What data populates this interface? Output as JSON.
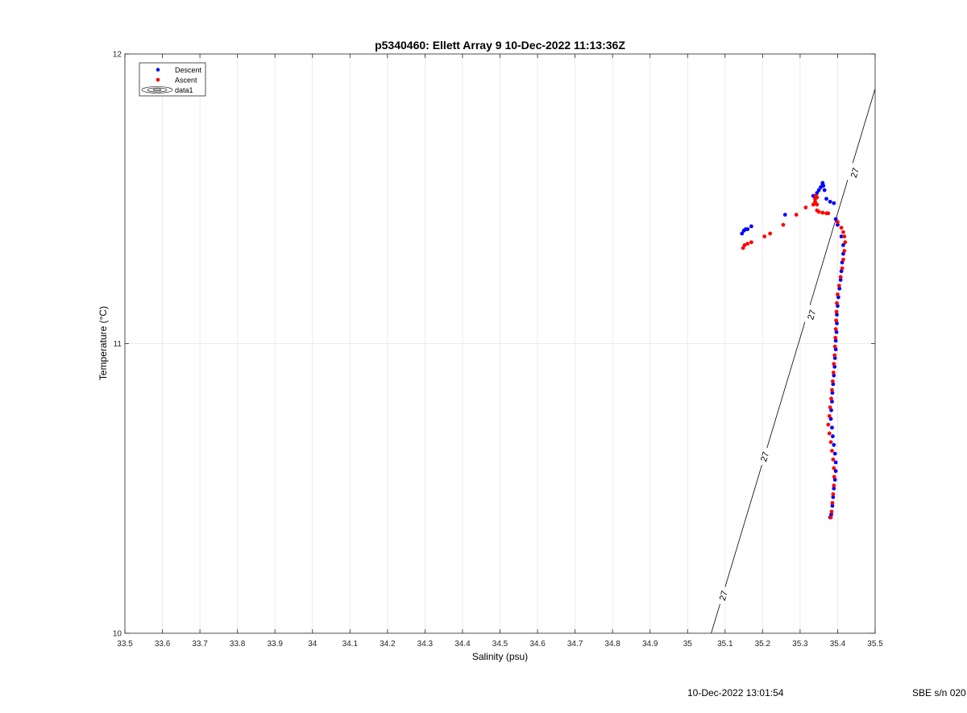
{
  "chart_data": {
    "type": "scatter",
    "title": "p5340460: Ellett Array 9 10-Dec-2022 11:13:36Z",
    "xlabel": "Salinity (psu)",
    "ylabel": "Temperature (°C)",
    "xlim": [
      33.5,
      35.5
    ],
    "ylim": [
      10,
      12
    ],
    "x_ticks": [
      "33.5",
      "33.6",
      "33.7",
      "33.8",
      "33.9",
      "34",
      "34.1",
      "34.2",
      "34.3",
      "34.4",
      "34.5",
      "34.6",
      "34.7",
      "34.8",
      "34.9",
      "35",
      "35.1",
      "35.2",
      "35.3",
      "35.4",
      "35.5"
    ],
    "y_ticks": [
      "10",
      "11",
      "12"
    ],
    "grid": true,
    "legend_position": "top-left",
    "series": [
      {
        "name": "Descent",
        "color": "#0000ff",
        "marker": "dot",
        "points": [
          [
            35.145,
            11.38
          ],
          [
            35.15,
            11.39
          ],
          [
            35.155,
            11.395
          ],
          [
            35.16,
            11.395
          ],
          [
            35.17,
            11.405
          ],
          [
            35.26,
            11.445
          ],
          [
            35.335,
            11.51
          ],
          [
            35.345,
            11.52
          ],
          [
            35.35,
            11.53
          ],
          [
            35.355,
            11.54
          ],
          [
            35.36,
            11.55
          ],
          [
            35.36,
            11.555
          ],
          [
            35.362,
            11.545
          ],
          [
            35.365,
            11.53
          ],
          [
            35.37,
            11.5
          ],
          [
            35.38,
            11.49
          ],
          [
            35.39,
            11.485
          ],
          [
            35.395,
            11.43
          ],
          [
            35.4,
            11.41
          ],
          [
            35.41,
            11.37
          ],
          [
            35.415,
            11.34
          ],
          [
            35.415,
            11.31
          ],
          [
            35.412,
            11.28
          ],
          [
            35.41,
            11.25
          ],
          [
            35.408,
            11.22
          ],
          [
            35.405,
            11.19
          ],
          [
            35.402,
            11.16
          ],
          [
            35.4,
            11.13
          ],
          [
            35.398,
            11.1
          ],
          [
            35.398,
            11.07
          ],
          [
            35.397,
            11.04
          ],
          [
            35.395,
            11.01
          ],
          [
            35.395,
            10.98
          ],
          [
            35.393,
            10.95
          ],
          [
            35.392,
            10.92
          ],
          [
            35.39,
            10.89
          ],
          [
            35.388,
            10.86
          ],
          [
            35.386,
            10.83
          ],
          [
            35.385,
            10.8
          ],
          [
            35.383,
            10.77
          ],
          [
            35.382,
            10.74
          ],
          [
            35.385,
            10.71
          ],
          [
            35.387,
            10.68
          ],
          [
            35.39,
            10.65
          ],
          [
            35.393,
            10.62
          ],
          [
            35.395,
            10.59
          ],
          [
            35.395,
            10.56
          ],
          [
            35.393,
            10.53
          ],
          [
            35.39,
            10.5
          ],
          [
            35.388,
            10.47
          ],
          [
            35.386,
            10.44
          ],
          [
            35.383,
            10.41
          ],
          [
            35.38,
            10.4
          ]
        ]
      },
      {
        "name": "Ascent",
        "color": "#ff0000",
        "marker": "dot",
        "points": [
          [
            35.148,
            11.33
          ],
          [
            35.152,
            11.34
          ],
          [
            35.16,
            11.345
          ],
          [
            35.17,
            11.35
          ],
          [
            35.205,
            11.37
          ],
          [
            35.22,
            11.38
          ],
          [
            35.255,
            11.41
          ],
          [
            35.29,
            11.445
          ],
          [
            35.315,
            11.47
          ],
          [
            35.335,
            11.48
          ],
          [
            35.34,
            11.49
          ],
          [
            35.34,
            11.5
          ],
          [
            35.342,
            11.51
          ],
          [
            35.345,
            11.505
          ],
          [
            35.345,
            11.48
          ],
          [
            35.345,
            11.46
          ],
          [
            35.35,
            11.455
          ],
          [
            35.36,
            11.452
          ],
          [
            35.37,
            11.45
          ],
          [
            35.375,
            11.45
          ],
          [
            35.4,
            11.42
          ],
          [
            35.41,
            11.4
          ],
          [
            35.415,
            11.385
          ],
          [
            35.418,
            11.37
          ],
          [
            35.42,
            11.35
          ],
          [
            35.418,
            11.32
          ],
          [
            35.415,
            11.29
          ],
          [
            35.412,
            11.26
          ],
          [
            35.408,
            11.23
          ],
          [
            35.404,
            11.2
          ],
          [
            35.4,
            11.17
          ],
          [
            35.398,
            11.14
          ],
          [
            35.397,
            11.11
          ],
          [
            35.396,
            11.08
          ],
          [
            35.395,
            11.05
          ],
          [
            35.394,
            11.02
          ],
          [
            35.393,
            10.99
          ],
          [
            35.392,
            10.96
          ],
          [
            35.39,
            10.93
          ],
          [
            35.389,
            10.9
          ],
          [
            35.387,
            10.87
          ],
          [
            35.385,
            10.84
          ],
          [
            35.383,
            10.81
          ],
          [
            35.38,
            10.78
          ],
          [
            35.378,
            10.75
          ],
          [
            35.375,
            10.72
          ],
          [
            35.378,
            10.69
          ],
          [
            35.382,
            10.66
          ],
          [
            35.385,
            10.63
          ],
          [
            35.388,
            10.6
          ],
          [
            35.39,
            10.57
          ],
          [
            35.391,
            10.54
          ],
          [
            35.39,
            10.51
          ],
          [
            35.388,
            10.48
          ],
          [
            35.386,
            10.45
          ],
          [
            35.384,
            10.42
          ],
          [
            35.382,
            10.4
          ]
        ]
      },
      {
        "name": "data1",
        "color": "#000000",
        "marker": "contour",
        "contour_level_label": "27",
        "line": [
          [
            35.063,
            10.0
          ],
          [
            35.5,
            11.88
          ]
        ],
        "label_points": [
          [
            35.095,
            10.13
          ],
          [
            35.205,
            10.61
          ],
          [
            35.33,
            11.1
          ],
          [
            35.445,
            11.59
          ]
        ]
      }
    ]
  },
  "footer": {
    "date": "10-Dec-2022 13:01:54",
    "serial": "SBE s/n 020"
  }
}
